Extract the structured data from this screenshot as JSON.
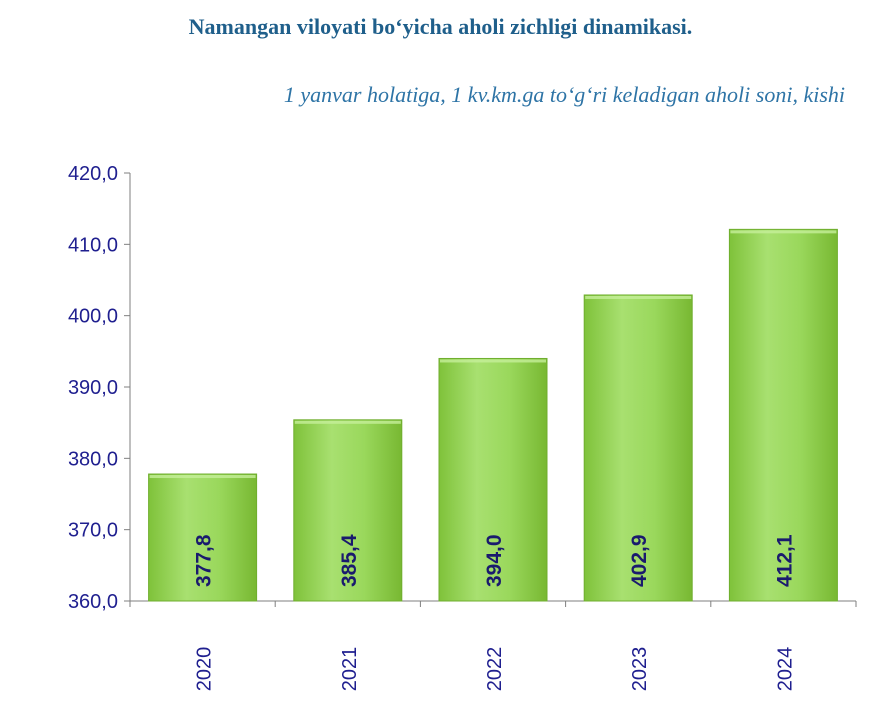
{
  "title": "Namangan viloyati bo‘yicha aholi zichligi dinamikasi.",
  "subtitle": "1 yanvar holatiga, 1 kv.km.ga to‘g‘ri keladigan aholi soni, kishi",
  "colors": {
    "bar": "#92d050",
    "bar_edge": "#6fae2e",
    "axis_text": "#1f1f8f",
    "label_text": "#1a1a6e"
  },
  "chart_data": {
    "type": "bar",
    "categories": [
      "2020",
      "2021",
      "2022",
      "2023",
      "2024"
    ],
    "values": [
      377.8,
      385.4,
      394.0,
      402.9,
      412.1
    ],
    "value_labels": [
      "377,8",
      "385,4",
      "394,0",
      "402,9",
      "412,1"
    ],
    "ylim": [
      360,
      420
    ],
    "yticks": [
      "360,0",
      "370,0",
      "380,0",
      "390,0",
      "400,0",
      "410,0",
      "420,0"
    ],
    "grid": false,
    "legend": "none"
  }
}
